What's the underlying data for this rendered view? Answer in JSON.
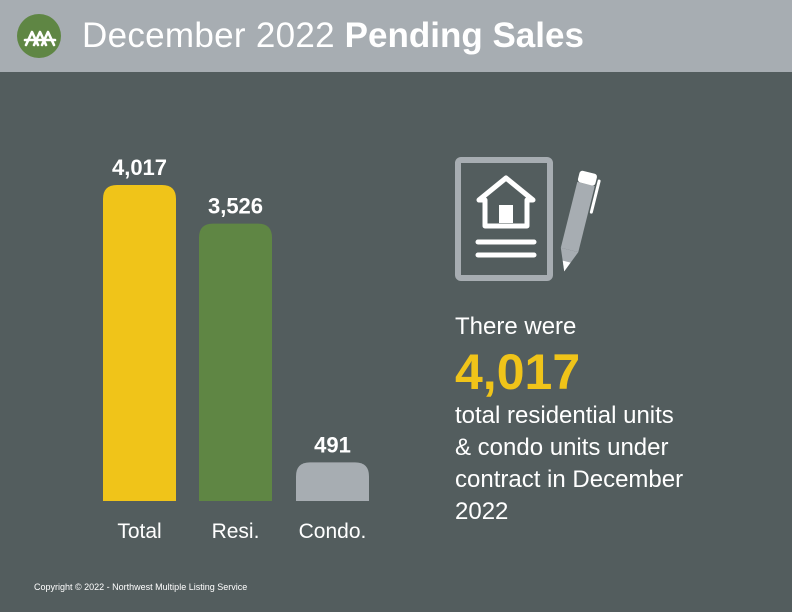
{
  "header": {
    "title_light": "December 2022",
    "title_bold": "Pending Sales",
    "logo_icon": "nwmls-logo-icon",
    "background": "#a7adb2"
  },
  "chart_data": {
    "type": "bar",
    "categories": [
      "Total",
      "Resi.",
      "Condo."
    ],
    "values": [
      4017,
      3526,
      491
    ],
    "value_labels": [
      "4,017",
      "3,526",
      "491"
    ],
    "colors": [
      "#f0c419",
      "#5f8644",
      "#a7adb2"
    ],
    "title": "",
    "xlabel": "",
    "ylabel": "",
    "grid": false
  },
  "summary": {
    "icon": "house-document-with-pen-icon",
    "intro": "There were",
    "number": "4,017",
    "description": "total residential units & condo units under contract in December 2022"
  },
  "footer": {
    "copyright": "Copyright © 2022 - Northwest Multiple Listing Service"
  },
  "colors": {
    "background": "#535d5e",
    "accent": "#f0c419"
  }
}
